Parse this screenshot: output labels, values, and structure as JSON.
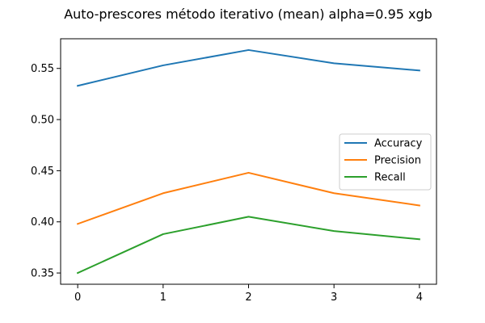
{
  "chart_data": {
    "type": "line",
    "title": "Auto-prescores método iterativo (mean) alpha=0.95 xgb",
    "xlabel": "",
    "ylabel": "",
    "x": [
      0,
      1,
      2,
      3,
      4
    ],
    "xticks": [
      "0",
      "1",
      "2",
      "3",
      "4"
    ],
    "yticks": [
      "0.35",
      "0.40",
      "0.45",
      "0.50",
      "0.55"
    ],
    "ytick_values": [
      0.35,
      0.4,
      0.45,
      0.5,
      0.55
    ],
    "xlim": [
      -0.2,
      4.2
    ],
    "ylim": [
      0.339,
      0.579
    ],
    "grid": false,
    "legend_position": "center-right",
    "series": [
      {
        "name": "Accuracy",
        "color": "#1f77b4",
        "values": [
          0.533,
          0.553,
          0.568,
          0.555,
          0.548
        ]
      },
      {
        "name": "Precision",
        "color": "#ff7f0e",
        "values": [
          0.398,
          0.428,
          0.448,
          0.428,
          0.416
        ]
      },
      {
        "name": "Recall",
        "color": "#2ca02c",
        "values": [
          0.35,
          0.388,
          0.405,
          0.391,
          0.383
        ]
      }
    ]
  }
}
